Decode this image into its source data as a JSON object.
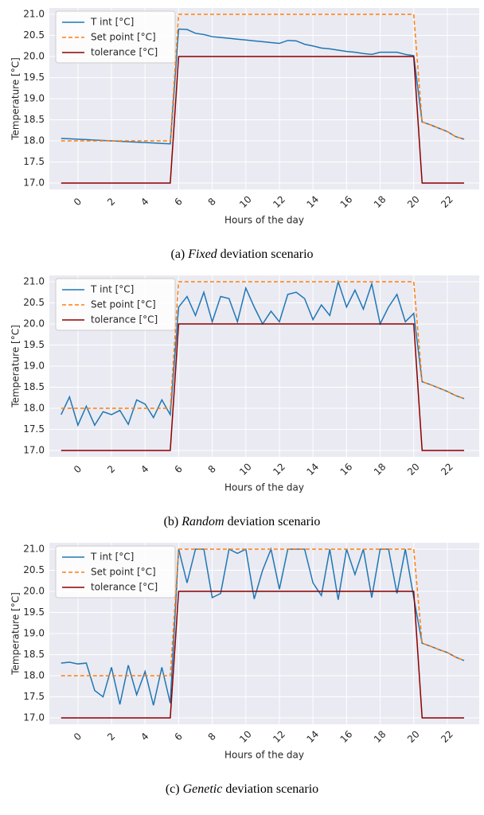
{
  "chart_data": [
    {
      "type": "line",
      "caption_label": "(a)",
      "caption_emph": "Fixed",
      "caption_rest": "deviation scenario",
      "xlabel": "Hours of the day",
      "ylabel": "Temperature [°C]",
      "grid": true,
      "legend": "upper left",
      "x": [
        -1,
        -0.5,
        0,
        0.5,
        1,
        1.5,
        2,
        2.5,
        3,
        3.5,
        4,
        4.5,
        5,
        5.5,
        6,
        6.5,
        7,
        7.5,
        8,
        8.5,
        9,
        9.5,
        10,
        10.5,
        11,
        11.5,
        12,
        12.5,
        13,
        13.5,
        14,
        14.5,
        15,
        15.5,
        16,
        16.5,
        17,
        17.5,
        18,
        18.5,
        19,
        19.5,
        20,
        20.5,
        21,
        21.5,
        22,
        22.5,
        23
      ],
      "xlim": [
        -1.7,
        23.9
      ],
      "xticks": [
        0,
        2,
        4,
        6,
        8,
        10,
        12,
        14,
        16,
        18,
        20,
        22
      ],
      "ylim": [
        16.85,
        21.15
      ],
      "yticks": [
        {
          "value": 17,
          "label": "17.0"
        },
        {
          "value": 17.5,
          "label": "17.5"
        },
        {
          "value": 18,
          "label": "18.0"
        },
        {
          "value": 18.5,
          "label": "18.5"
        },
        {
          "value": 19,
          "label": "19.0"
        },
        {
          "value": 19.5,
          "label": "19.5"
        },
        {
          "value": 20,
          "label": "20.0"
        },
        {
          "value": 20.5,
          "label": "20.5"
        },
        {
          "value": 21,
          "label": "21.0"
        }
      ],
      "series": [
        {
          "name": "T int [°C]",
          "color": "#1f77b4",
          "style": "solid",
          "values": [
            18.06,
            18.05,
            18.04,
            18.03,
            18.02,
            18.01,
            18.0,
            17.99,
            17.98,
            17.97,
            17.96,
            17.95,
            17.94,
            17.93,
            20.65,
            20.64,
            20.55,
            20.52,
            20.47,
            20.45,
            20.43,
            20.41,
            20.39,
            20.37,
            20.35,
            20.33,
            20.31,
            20.38,
            20.37,
            20.29,
            20.25,
            20.2,
            20.18,
            20.15,
            20.12,
            20.1,
            20.07,
            20.05,
            20.1,
            20.1,
            20.1,
            20.05,
            20.02,
            18.45,
            18.38,
            18.3,
            18.22,
            18.1,
            18.04
          ]
        },
        {
          "name": "Set point [°C]",
          "color": "#ff7f0e",
          "style": "dashed",
          "values": [
            18,
            18,
            18,
            18,
            18,
            18,
            18,
            18,
            18,
            18,
            18,
            18,
            18,
            18,
            21,
            21,
            21,
            21,
            21,
            21,
            21,
            21,
            21,
            21,
            21,
            21,
            21,
            21,
            21,
            21,
            21,
            21,
            21,
            21,
            21,
            21,
            21,
            21,
            21,
            21,
            21,
            21,
            21,
            18.45,
            18.38,
            18.3,
            18.22,
            18.1,
            18.04
          ]
        },
        {
          "name": "tolerance [°C]",
          "color": "#8b0000",
          "style": "solid",
          "values": [
            17,
            17,
            17,
            17,
            17,
            17,
            17,
            17,
            17,
            17,
            17,
            17,
            17,
            17,
            20,
            20,
            20,
            20,
            20,
            20,
            20,
            20,
            20,
            20,
            20,
            20,
            20,
            20,
            20,
            20,
            20,
            20,
            20,
            20,
            20,
            20,
            20,
            20,
            20,
            20,
            20,
            20,
            20,
            17,
            17,
            17,
            17,
            17,
            17
          ]
        }
      ]
    },
    {
      "type": "line",
      "caption_label": "(b)",
      "caption_emph": "Random",
      "caption_rest": "deviation scenario",
      "xlabel": "Hours of the day",
      "ylabel": "Temperature [°C]",
      "grid": true,
      "legend": "upper left",
      "x": [
        -1,
        -0.5,
        0,
        0.5,
        1,
        1.5,
        2,
        2.5,
        3,
        3.5,
        4,
        4.5,
        5,
        5.5,
        6,
        6.5,
        7,
        7.5,
        8,
        8.5,
        9,
        9.5,
        10,
        10.5,
        11,
        11.5,
        12,
        12.5,
        13,
        13.5,
        14,
        14.5,
        15,
        15.5,
        16,
        16.5,
        17,
        17.5,
        18,
        18.5,
        19,
        19.5,
        20,
        20.5,
        21,
        21.5,
        22,
        22.5,
        23
      ],
      "xlim": [
        -1.7,
        23.9
      ],
      "xticks": [
        0,
        2,
        4,
        6,
        8,
        10,
        12,
        14,
        16,
        18,
        20,
        22
      ],
      "ylim": [
        16.85,
        21.15
      ],
      "yticks": [
        {
          "value": 17,
          "label": "17.0"
        },
        {
          "value": 17.5,
          "label": "17.5"
        },
        {
          "value": 18,
          "label": "18.0"
        },
        {
          "value": 18.5,
          "label": "18.5"
        },
        {
          "value": 19,
          "label": "19.0"
        },
        {
          "value": 19.5,
          "label": "19.5"
        },
        {
          "value": 20,
          "label": "20.0"
        },
        {
          "value": 20.5,
          "label": "20.5"
        },
        {
          "value": 21,
          "label": "21.0"
        }
      ],
      "series": [
        {
          "name": "T int [°C]",
          "color": "#1f77b4",
          "style": "solid",
          "values": [
            17.85,
            18.27,
            17.6,
            18.05,
            17.6,
            17.92,
            17.85,
            17.95,
            17.62,
            18.2,
            18.1,
            17.78,
            18.2,
            17.85,
            20.4,
            20.65,
            20.2,
            20.75,
            20.05,
            20.65,
            20.6,
            20.05,
            20.85,
            20.4,
            20.0,
            20.3,
            20.05,
            20.7,
            20.75,
            20.6,
            20.1,
            20.45,
            20.2,
            21.0,
            20.4,
            20.8,
            20.35,
            20.95,
            20.0,
            20.4,
            20.7,
            20.05,
            20.25,
            18.63,
            18.56,
            18.48,
            18.4,
            18.3,
            18.23
          ]
        },
        {
          "name": "Set point [°C]",
          "color": "#ff7f0e",
          "style": "dashed",
          "values": [
            18,
            18,
            18,
            18,
            18,
            18,
            18,
            18,
            18,
            18,
            18,
            18,
            18,
            18,
            21,
            21,
            21,
            21,
            21,
            21,
            21,
            21,
            21,
            21,
            21,
            21,
            21,
            21,
            21,
            21,
            21,
            21,
            21,
            21,
            21,
            21,
            21,
            21,
            21,
            21,
            21,
            21,
            21,
            18.63,
            18.56,
            18.48,
            18.4,
            18.3,
            18.23
          ]
        },
        {
          "name": "tolerance [°C]",
          "color": "#8b0000",
          "style": "solid",
          "values": [
            17,
            17,
            17,
            17,
            17,
            17,
            17,
            17,
            17,
            17,
            17,
            17,
            17,
            17,
            20,
            20,
            20,
            20,
            20,
            20,
            20,
            20,
            20,
            20,
            20,
            20,
            20,
            20,
            20,
            20,
            20,
            20,
            20,
            20,
            20,
            20,
            20,
            20,
            20,
            20,
            20,
            20,
            20,
            17,
            17,
            17,
            17,
            17,
            17
          ]
        }
      ]
    },
    {
      "type": "line",
      "caption_label": "(c)",
      "caption_emph": "Genetic",
      "caption_rest": "deviation scenario",
      "xlabel": "Hours of the day",
      "ylabel": "Temperature [°C]",
      "grid": true,
      "legend": "upper left",
      "x": [
        -1,
        -0.5,
        0,
        0.5,
        1,
        1.5,
        2,
        2.5,
        3,
        3.5,
        4,
        4.5,
        5,
        5.5,
        6,
        6.5,
        7,
        7.5,
        8,
        8.5,
        9,
        9.5,
        10,
        10.5,
        11,
        11.5,
        12,
        12.5,
        13,
        13.5,
        14,
        14.5,
        15,
        15.5,
        16,
        16.5,
        17,
        17.5,
        18,
        18.5,
        19,
        19.5,
        20,
        20.5,
        21,
        21.5,
        22,
        22.5,
        23
      ],
      "xlim": [
        -1.7,
        23.9
      ],
      "xticks": [
        0,
        2,
        4,
        6,
        8,
        10,
        12,
        14,
        16,
        18,
        20,
        22
      ],
      "ylim": [
        16.85,
        21.15
      ],
      "yticks": [
        {
          "value": 17,
          "label": "17.0"
        },
        {
          "value": 17.5,
          "label": "17.5"
        },
        {
          "value": 18,
          "label": "18.0"
        },
        {
          "value": 18.5,
          "label": "18.5"
        },
        {
          "value": 19,
          "label": "19.0"
        },
        {
          "value": 19.5,
          "label": "19.5"
        },
        {
          "value": 20,
          "label": "20.0"
        },
        {
          "value": 20.5,
          "label": "20.5"
        },
        {
          "value": 21,
          "label": "21.0"
        }
      ],
      "series": [
        {
          "name": "T int [°C]",
          "color": "#1f77b4",
          "style": "solid",
          "values": [
            18.3,
            18.32,
            18.28,
            18.3,
            17.65,
            17.5,
            18.2,
            17.32,
            18.25,
            17.55,
            18.1,
            17.3,
            18.2,
            17.35,
            21.0,
            20.2,
            21.0,
            21.0,
            19.85,
            19.95,
            21.0,
            20.9,
            21.0,
            19.82,
            20.5,
            21.0,
            20.05,
            21.0,
            21.0,
            21.0,
            20.2,
            19.9,
            21.0,
            19.8,
            21.0,
            20.4,
            21.0,
            19.85,
            21.0,
            21.0,
            19.95,
            21.0,
            19.85,
            18.77,
            18.7,
            18.62,
            18.55,
            18.44,
            18.36
          ]
        },
        {
          "name": "Set point [°C]",
          "color": "#ff7f0e",
          "style": "dashed",
          "values": [
            18,
            18,
            18,
            18,
            18,
            18,
            18,
            18,
            18,
            18,
            18,
            18,
            18,
            18,
            21,
            21,
            21,
            21,
            21,
            21,
            21,
            21,
            21,
            21,
            21,
            21,
            21,
            21,
            21,
            21,
            21,
            21,
            21,
            21,
            21,
            21,
            21,
            21,
            21,
            21,
            21,
            21,
            21,
            18.77,
            18.7,
            18.62,
            18.55,
            18.44,
            18.36
          ]
        },
        {
          "name": "tolerance [°C]",
          "color": "#8b0000",
          "style": "solid",
          "values": [
            17,
            17,
            17,
            17,
            17,
            17,
            17,
            17,
            17,
            17,
            17,
            17,
            17,
            17,
            20,
            20,
            20,
            20,
            20,
            20,
            20,
            20,
            20,
            20,
            20,
            20,
            20,
            20,
            20,
            20,
            20,
            20,
            20,
            20,
            20,
            20,
            20,
            20,
            20,
            20,
            20,
            20,
            20,
            17,
            17,
            17,
            17,
            17,
            17
          ]
        }
      ]
    }
  ]
}
